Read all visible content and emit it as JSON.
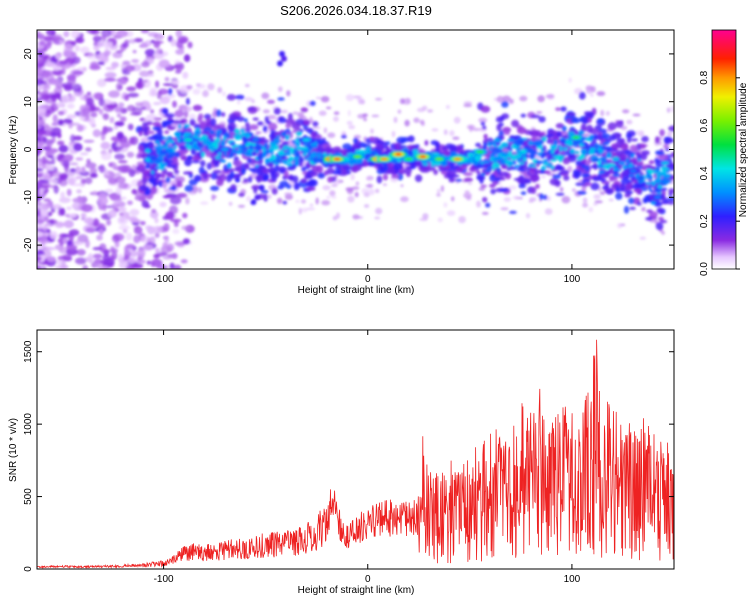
{
  "title": "S206.2026.034.18.37.R19",
  "colors": {
    "snr_line": "#ee2222",
    "frame": "#000000",
    "background": "#ffffff"
  },
  "colormap_name": "rainbow (white-violet-blue-cyan-green-yellow-red-magenta)",
  "chart_data": [
    {
      "type": "heatmap",
      "title": "",
      "xlabel": "Height of straight line (km)",
      "ylabel": "Frequency (Hz)",
      "xlim": [
        -162,
        150
      ],
      "ylim": [
        -25,
        25
      ],
      "xticks": [
        -100,
        0,
        100
      ],
      "yticks": [
        -20,
        -10,
        0,
        10,
        20
      ],
      "grid": false,
      "colorbar": {
        "label": "Normalized spectral amplitude",
        "range": [
          0,
          1
        ],
        "ticks": [
          0.0,
          0.2,
          0.4,
          0.6,
          0.8
        ]
      },
      "ridge": {
        "x": [
          -110,
          -100,
          -90,
          -80,
          -70,
          -60,
          -50,
          -40,
          -30,
          -20,
          -10,
          0,
          10,
          20,
          30,
          40,
          50,
          60,
          70,
          80,
          90,
          100,
          110,
          120,
          130,
          140,
          148
        ],
        "y": [
          -2,
          -1,
          2,
          1,
          0,
          1,
          -1,
          0,
          0,
          -2,
          -2,
          -1,
          -2,
          -1,
          -2,
          -2,
          -2,
          -1,
          -1,
          -1,
          -1,
          2,
          0,
          -3,
          -4,
          -8,
          -4
        ]
      },
      "features": [
        {
          "x": -18,
          "y": -2,
          "amplitude": 0.95
        },
        {
          "x": -15,
          "y": -2,
          "amplitude": 0.85
        },
        {
          "x": -5,
          "y": -1.5,
          "amplitude": 0.6
        },
        {
          "x": 5,
          "y": -2,
          "amplitude": 0.92
        },
        {
          "x": 8,
          "y": -2,
          "amplitude": 0.8
        },
        {
          "x": 15,
          "y": -1,
          "amplitude": 0.9
        },
        {
          "x": 20,
          "y": -2,
          "amplitude": 0.55
        },
        {
          "x": 27,
          "y": -1.5,
          "amplitude": 0.85
        },
        {
          "x": 35,
          "y": -2,
          "amplitude": 0.6
        },
        {
          "x": 44,
          "y": -2,
          "amplitude": 0.8
        },
        {
          "x": 55,
          "y": -0.5,
          "amplitude": 0.55
        },
        {
          "x": -88,
          "y": 2,
          "amplitude": 0.45
        },
        {
          "x": -70,
          "y": 0,
          "amplitude": 0.35
        },
        {
          "x": -55,
          "y": 2,
          "amplitude": 0.3
        },
        {
          "x": -30,
          "y": 2,
          "amplitude": 0.4
        },
        {
          "x": 102,
          "y": 2.5,
          "amplitude": 0.55
        },
        {
          "x": 130,
          "y": -4.5,
          "amplitude": 0.3
        },
        {
          "x": 142,
          "y": -10,
          "amplitude": 0.3
        }
      ]
    },
    {
      "type": "line",
      "title": "",
      "xlabel": "Height of straight line (km)",
      "ylabel": "SNR (10 * v/v)",
      "xlim": [
        -162,
        150
      ],
      "ylim": [
        0,
        1650
      ],
      "xticks": [
        -100,
        0,
        100
      ],
      "yticks": [
        0,
        500,
        1000,
        1500
      ],
      "grid": false,
      "series": [
        {
          "name": "",
          "x": [
            -162,
            -150,
            -140,
            -130,
            -120,
            -110,
            -100,
            -95,
            -90,
            -85,
            -80,
            -75,
            -70,
            -65,
            -60,
            -55,
            -50,
            -45,
            -40,
            -35,
            -30,
            -25,
            -20,
            -17,
            -15,
            -12,
            -10,
            -5,
            0,
            5,
            10,
            15,
            20,
            25,
            27,
            30,
            35,
            40,
            45,
            50,
            55,
            60,
            62,
            65,
            70,
            75,
            80,
            85,
            90,
            95,
            100,
            105,
            110,
            112,
            115,
            120,
            125,
            130,
            135,
            140,
            145,
            148,
            150
          ],
          "y": [
            20,
            25,
            20,
            25,
            30,
            40,
            60,
            100,
            160,
            180,
            170,
            180,
            200,
            220,
            210,
            240,
            250,
            260,
            280,
            290,
            320,
            380,
            500,
            600,
            450,
            350,
            320,
            380,
            420,
            460,
            480,
            500,
            460,
            520,
            930,
            700,
            750,
            820,
            680,
            900,
            820,
            980,
            1080,
            900,
            950,
            1200,
            1100,
            1300,
            1050,
            1150,
            1100,
            1050,
            1550,
            1620,
            1200,
            1150,
            1050,
            1000,
            1050,
            950,
            1000,
            900,
            700
          ]
        }
      ]
    }
  ]
}
